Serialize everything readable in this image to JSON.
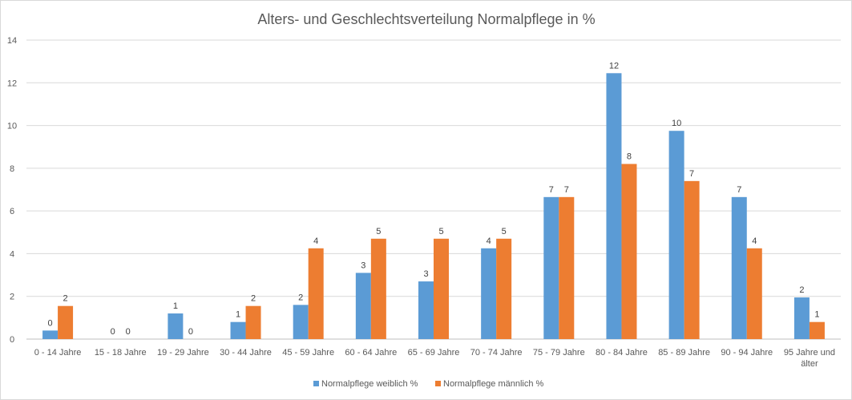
{
  "chart_data": {
    "type": "bar",
    "title": "Alters- und Geschlechtsverteilung Normalpflege in %",
    "xlabel": "",
    "ylabel": "",
    "ylim": [
      0,
      14
    ],
    "yticks": [
      0,
      2,
      4,
      6,
      8,
      10,
      12,
      14
    ],
    "grid": true,
    "legend_position": "bottom",
    "categories": [
      [
        "0 - 14 Jahre"
      ],
      [
        "15 - 18 Jahre"
      ],
      [
        "19 - 29 Jahre"
      ],
      [
        "30 - 44 Jahre"
      ],
      [
        "45 - 59 Jahre"
      ],
      [
        "60 - 64 Jahre"
      ],
      [
        "65 - 69 Jahre"
      ],
      [
        "70 - 74 Jahre"
      ],
      [
        "75 - 79 Jahre"
      ],
      [
        "80 - 84 Jahre"
      ],
      [
        "85 - 89 Jahre"
      ],
      [
        "90 - 94 Jahre"
      ],
      [
        "95 Jahre und",
        "älter"
      ]
    ],
    "series": [
      {
        "name": "Normalpflege weiblich %",
        "color": "#5b9bd5",
        "values": [
          0.4,
          0,
          1.2,
          0.8,
          1.6,
          3.1,
          2.7,
          4.25,
          6.65,
          12.45,
          9.75,
          6.65,
          1.95
        ],
        "labels": [
          "0",
          "0",
          "1",
          "1",
          "2",
          "3",
          "3",
          "4",
          "7",
          "12",
          "10",
          "7",
          "2"
        ]
      },
      {
        "name": "Normalpflege männlich %",
        "color": "#ed7d31",
        "values": [
          1.55,
          0,
          0,
          1.55,
          4.25,
          4.7,
          4.7,
          4.7,
          6.65,
          8.2,
          7.4,
          4.25,
          0.8
        ],
        "labels": [
          "2",
          "0",
          "0",
          "2",
          "4",
          "5",
          "5",
          "5",
          "7",
          "8",
          "7",
          "4",
          "1"
        ]
      }
    ]
  }
}
